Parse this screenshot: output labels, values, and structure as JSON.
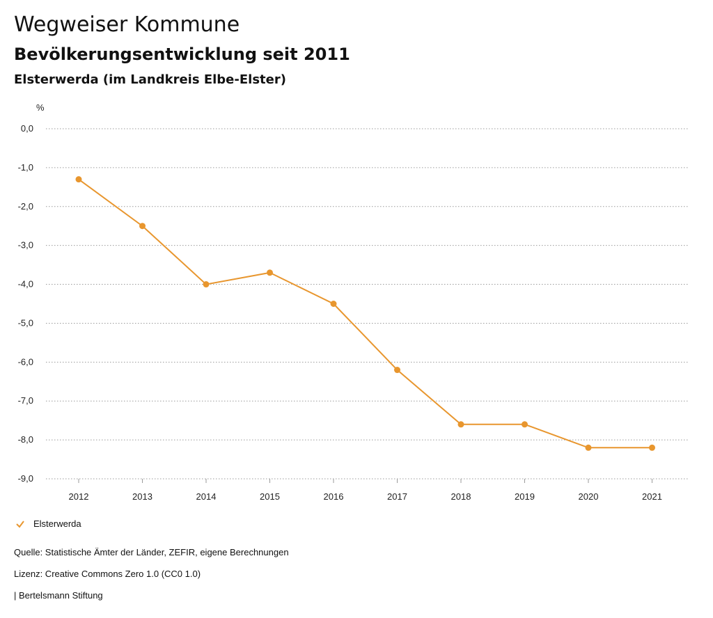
{
  "header": {
    "title": "Wegweiser Kommune",
    "subtitle": "Bevölkerungsentwicklung seit 2011",
    "place": "Elsterwerda (im Landkreis Elbe-Elster)"
  },
  "chart_data": {
    "type": "line",
    "ylabel": "%",
    "x": [
      2012,
      2013,
      2014,
      2015,
      2016,
      2017,
      2018,
      2019,
      2020,
      2021
    ],
    "ylim": [
      -9.0,
      0.0
    ],
    "yticks": [
      "0,0",
      "-1,0",
      "-2,0",
      "-3,0",
      "-4,0",
      "-5,0",
      "-6,0",
      "-7,0",
      "-8,0",
      "-9,0"
    ],
    "series": [
      {
        "name": "Elsterwerda",
        "color": "#E8962E",
        "values": [
          -1.3,
          -2.5,
          -4.0,
          -3.7,
          -4.5,
          -6.2,
          -7.6,
          -7.6,
          -8.2,
          -8.2
        ]
      }
    ],
    "grid": "horizontal-dotted",
    "legend": "bottom-left"
  },
  "footer": {
    "source": "Quelle: Statistische Ämter der Länder, ZEFIR, eigene Berechnungen",
    "license": "Lizenz: Creative Commons Zero 1.0 (CC0 1.0)",
    "publisher": "| Bertelsmann Stiftung"
  }
}
